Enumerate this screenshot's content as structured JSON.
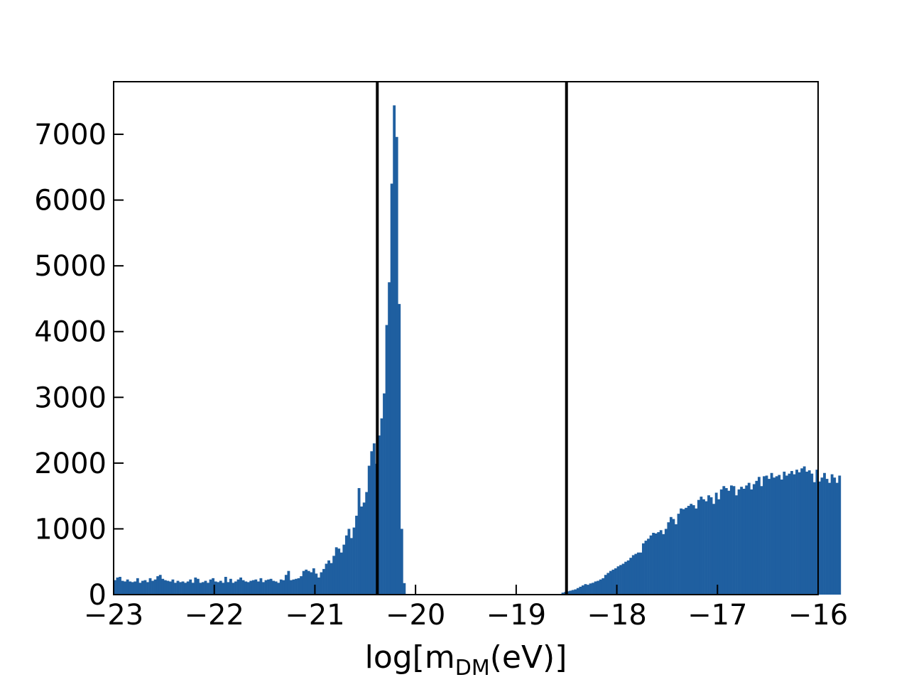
{
  "chart_data": {
    "type": "bar",
    "title": "",
    "xlabel": {
      "base": "log[m",
      "subscript": "DM",
      "suffix": "(eV)]"
    },
    "ylabel": "",
    "xlim": [
      -23,
      -16
    ],
    "ylim": [
      0,
      7800
    ],
    "x_ticks": [
      -23,
      -22,
      -21,
      -20,
      -19,
      -18,
      -17,
      -16
    ],
    "x_tick_labels": [
      "−23",
      "−22",
      "−21",
      "−20",
      "−19",
      "−18",
      "−17",
      "−16"
    ],
    "y_ticks": [
      0,
      1000,
      2000,
      3000,
      4000,
      5000,
      6000,
      7000
    ],
    "y_tick_labels": [
      "0",
      "1000",
      "2000",
      "3000",
      "4000",
      "5000",
      "6000",
      "7000"
    ],
    "bin_width": 0.025,
    "bar_color": "#1f5fa0",
    "vlines": [
      -20.38,
      -18.5
    ],
    "vline_color": "#000000",
    "series": [
      {
        "x_start": -23.0,
        "values": [
          220,
          260,
          270,
          210,
          200,
          230,
          200,
          190,
          200,
          250,
          180,
          210,
          220,
          190,
          250,
          210,
          230,
          280,
          300,
          240,
          220,
          210,
          200,
          230,
          180,
          210,
          190,
          200,
          180,
          200,
          230,
          180,
          260,
          240,
          180,
          190,
          210,
          180,
          230,
          250,
          200,
          190,
          210,
          180,
          270,
          190,
          240,
          180,
          200,
          230,
          260,
          220,
          200,
          190,
          210,
          220,
          230,
          200,
          250,
          190,
          220,
          230,
          240,
          210,
          200,
          180,
          230,
          220,
          300,
          360,
          220,
          230,
          240,
          250,
          280,
          360,
          380,
          360,
          340,
          400,
          320,
          260,
          340,
          390,
          470,
          520,
          480,
          590,
          720,
          700,
          640,
          760,
          900,
          1000,
          860,
          1020,
          1200,
          1620,
          1340,
          1400,
          1560,
          1960,
          2180,
          2300,
          1990,
          2420,
          2680,
          3060,
          4100,
          4750,
          6250,
          7440,
          6960,
          4420,
          1000,
          175
        ],
        "bins": 116
      },
      {
        "x_start": -18.55,
        "values": [
          30,
          40,
          50,
          60,
          70,
          80,
          100,
          120,
          140,
          160,
          150,
          170,
          180,
          200,
          210,
          230,
          250,
          300,
          330,
          360,
          380,
          400,
          430,
          450,
          470,
          500,
          520,
          560,
          600,
          620,
          640,
          640,
          780,
          820,
          850,
          900,
          940,
          930,
          950,
          980,
          920,
          1000,
          1100,
          1180,
          1150,
          1070,
          1230,
          1310,
          1300,
          1320,
          1350,
          1380,
          1360,
          1310,
          1440,
          1490,
          1450,
          1420,
          1510,
          1480,
          1380,
          1550,
          1450,
          1600,
          1650,
          1620,
          1580,
          1660,
          1650,
          1510,
          1600,
          1640,
          1610,
          1660,
          1700,
          1600,
          1680,
          1730,
          1790,
          1650,
          1800,
          1810,
          1760,
          1850,
          1780,
          1800,
          1820,
          1750,
          1870,
          1810,
          1840,
          1880,
          1830,
          1900,
          1860,
          1920,
          1950,
          1870,
          1890,
          1840,
          1710,
          1900,
          1720,
          1780,
          1850,
          1760,
          1700,
          1830,
          1780,
          1700,
          1810
        ]
      }
    ]
  }
}
